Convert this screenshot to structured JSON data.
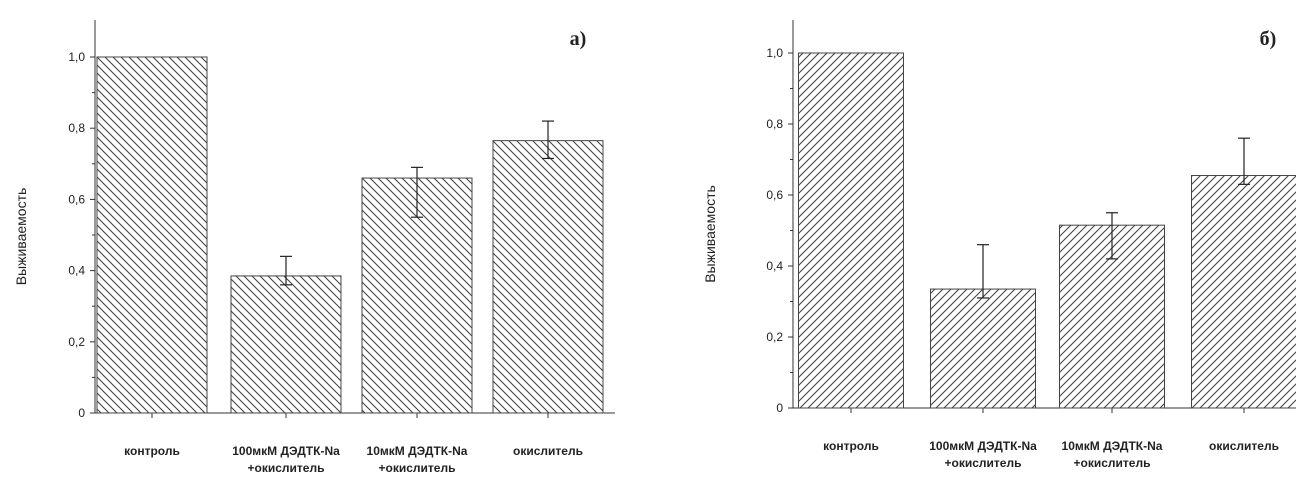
{
  "colors": {
    "axis": "#333333",
    "bar_stroke": "#444444",
    "hatch": "#444444"
  },
  "chart_data": [
    {
      "type": "bar",
      "panel_label": "а)",
      "ylabel": "Выживаемость",
      "ylim": [
        0,
        1.1
      ],
      "yticks": [
        "0",
        "0,2",
        "0,4",
        "0,6",
        "0,8",
        "1,0"
      ],
      "categories": [
        [
          "контроль"
        ],
        [
          "100мкМ ДЭДТК-Na",
          "+окислитель"
        ],
        [
          "10мкМ ДЭДТК-Na",
          "+окислитель"
        ],
        [
          "окислитель"
        ]
      ],
      "values": [
        1.0,
        0.385,
        0.66,
        0.765
      ],
      "error_low": [
        null,
        0.36,
        0.55,
        0.715
      ],
      "error_high": [
        null,
        0.44,
        0.69,
        0.82
      ],
      "hatch": "backslash",
      "grid": false
    },
    {
      "type": "bar",
      "panel_label": "б)",
      "ylabel": "Выживаемость",
      "ylim": [
        0,
        1.1
      ],
      "yticks": [
        "0",
        "0,2",
        "0,4",
        "0,6",
        "0,8",
        "1,0"
      ],
      "categories": [
        [
          "контроль"
        ],
        [
          "100мкМ ДЭДТК-Na",
          "+окислитель"
        ],
        [
          "10мкМ ДЭДТК-Na",
          "+окислитель"
        ],
        [
          "окислитель"
        ]
      ],
      "values": [
        1.0,
        0.335,
        0.515,
        0.655
      ],
      "error_low": [
        null,
        0.31,
        0.42,
        0.63
      ],
      "error_high": [
        null,
        0.46,
        0.55,
        0.76
      ],
      "hatch": "slash",
      "grid": false
    }
  ]
}
